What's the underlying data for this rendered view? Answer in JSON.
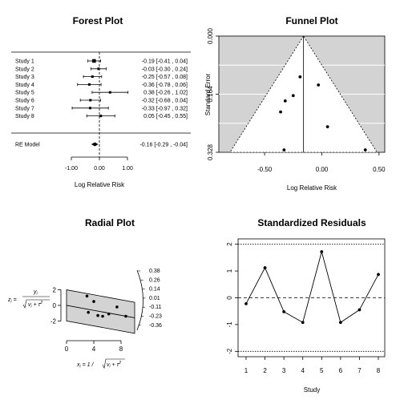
{
  "chart_data": [
    {
      "type": "forest",
      "title": "Forest Plot",
      "xlabel": "Log Relative Risk",
      "xticks": [
        "-1.00",
        "0.00",
        "1.00"
      ],
      "xlim": [
        -1.0,
        1.0
      ],
      "studies": [
        {
          "label": "Study 1",
          "est": -0.19,
          "lo": -0.41,
          "hi": 0.04,
          "text": "-0.19 [-0.41 ,  0.04]"
        },
        {
          "label": "Study 2",
          "est": -0.03,
          "lo": -0.3,
          "hi": 0.24,
          "text": "-0.03 [-0.30 ,  0.24]"
        },
        {
          "label": "Study 3",
          "est": -0.25,
          "lo": -0.57,
          "hi": 0.08,
          "text": "-0.25 [-0.57 ,  0.08]"
        },
        {
          "label": "Study 4",
          "est": -0.36,
          "lo": -0.78,
          "hi": 0.06,
          "text": "-0.36 [-0.78 ,  0.06]"
        },
        {
          "label": "Study 5",
          "est": 0.38,
          "lo": -0.26,
          "hi": 1.02,
          "text": " 0.38 [-0.26 ,  1.02]"
        },
        {
          "label": "Study 6",
          "est": -0.32,
          "lo": -0.68,
          "hi": 0.04,
          "text": "-0.32 [-0.68 ,  0.04]"
        },
        {
          "label": "Study 7",
          "est": -0.33,
          "lo": -0.97,
          "hi": 0.32,
          "text": "-0.33 [-0.97 ,  0.32]"
        },
        {
          "label": "Study 8",
          "est": 0.05,
          "lo": -0.45,
          "hi": 0.55,
          "text": " 0.05 [-0.45 ,  0.55]"
        }
      ],
      "summary": {
        "label": "RE Model",
        "est": -0.16,
        "lo": -0.29,
        "hi": -0.04,
        "text": "-0.16 [-0.29 , -0.04]"
      }
    },
    {
      "type": "funnel",
      "title": "Funnel Plot",
      "xlabel": "Log Relative Risk",
      "ylabel": "Standard Error",
      "xticks": [
        "-0.50",
        "0.00",
        "0.50"
      ],
      "yticks": [
        "0.000",
        "0.164",
        "0.328"
      ],
      "xlim": [
        -0.9,
        0.55
      ],
      "ylim": [
        0,
        0.328
      ],
      "center": -0.16,
      "points": [
        {
          "x": -0.19,
          "y": 0.115
        },
        {
          "x": -0.03,
          "y": 0.138
        },
        {
          "x": -0.25,
          "y": 0.168
        },
        {
          "x": -0.32,
          "y": 0.183
        },
        {
          "x": -0.36,
          "y": 0.214
        },
        {
          "x": 0.05,
          "y": 0.256
        },
        {
          "x": 0.38,
          "y": 0.326
        },
        {
          "x": -0.33,
          "y": 0.328
        }
      ]
    },
    {
      "type": "radial",
      "title": "Radial Plot",
      "xlabel": "x",
      "ylabel": "z",
      "xticks": [
        "0",
        "4",
        "8"
      ],
      "yticks": [
        "2",
        "0",
        "-2"
      ],
      "xlim": [
        0,
        10
      ],
      "ylim": [
        -3.2,
        3.5
      ],
      "arc_labels": [
        "0.38",
        "0.26",
        "0.14",
        "0.01",
        "-0.11",
        "-0.23",
        "-0.36"
      ],
      "points": [
        {
          "x": 3.0,
          "y": 1.2
        },
        {
          "x": 4.0,
          "y": 0.5
        },
        {
          "x": 3.2,
          "y": -0.9
        },
        {
          "x": 4.6,
          "y": -1.3
        },
        {
          "x": 5.3,
          "y": -1.4
        },
        {
          "x": 6.2,
          "y": -1.1
        },
        {
          "x": 7.4,
          "y": -0.2
        },
        {
          "x": 8.7,
          "y": -1.4
        }
      ]
    },
    {
      "type": "line",
      "title": "Standardized Residuals",
      "xlabel": "Study",
      "xticks": [
        "1",
        "2",
        "3",
        "4",
        "5",
        "6",
        "7",
        "8"
      ],
      "yticks": [
        "2",
        "1",
        "0",
        "-1",
        "-2"
      ],
      "ylim": [
        -2.2,
        2.2
      ],
      "x": [
        1,
        2,
        3,
        4,
        5,
        6,
        7,
        8
      ],
      "values": [
        -0.22,
        1.12,
        -0.52,
        -0.92,
        1.72,
        -0.92,
        -0.45,
        0.87
      ]
    }
  ]
}
